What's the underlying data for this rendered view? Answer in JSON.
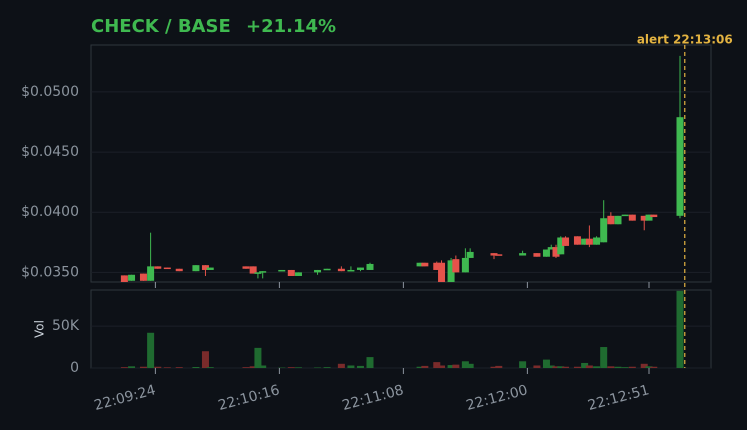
{
  "chart_data": {
    "type": "candlestick",
    "title": "CHECK / BASE",
    "change": "+21.14%",
    "up_color": "#3fb950",
    "down_color": "#e5534b",
    "volume_up_color": "#1f6b30",
    "volume_down_color": "#7a2b2b",
    "x": [
      79751,
      79754,
      79759,
      79762,
      79765,
      79769,
      79774,
      79781,
      79785,
      79787,
      79802,
      79805,
      79807,
      79809,
      79817,
      79821,
      79824,
      79832,
      79836,
      79842,
      79846,
      79850,
      79854,
      79875,
      79877,
      79882,
      79884,
      79888,
      79890,
      79894,
      79896,
      79906,
      79908,
      79918,
      79924,
      79928,
      79930,
      79932,
      79934,
      79936,
      79941,
      79944,
      79946,
      79949,
      79952,
      79955,
      79958,
      79961,
      79964,
      79969,
      79971,
      79973,
      79984
    ],
    "open": [
      0.03475,
      0.0343,
      0.0349,
      0.0343,
      0.0355,
      0.0354,
      0.0353,
      0.0351,
      0.0356,
      0.0352,
      0.0355,
      0.0355,
      0.0349,
      0.035,
      0.0351,
      0.0352,
      0.0347,
      0.035,
      0.0352,
      0.0353,
      0.0351,
      0.0352,
      0.0352,
      0.0355,
      0.0358,
      0.0358,
      0.0358,
      0.0342,
      0.0361,
      0.035,
      0.0362,
      0.0366,
      0.0365,
      0.0364,
      0.0366,
      0.0363,
      0.0369,
      0.0371,
      0.0365,
      0.0379,
      0.038,
      0.0373,
      0.0378,
      0.0373,
      0.0375,
      0.0397,
      0.039,
      0.0397,
      0.0398,
      0.0397,
      0.0393,
      0.0398,
      0.0397
    ],
    "high": [
      0.03475,
      0.0348,
      0.0349,
      0.0383,
      0.0355,
      0.0354,
      0.0353,
      0.0356,
      0.0356,
      0.0354,
      0.0355,
      0.0355,
      0.035,
      0.0351,
      0.0352,
      0.0352,
      0.035,
      0.0352,
      0.0353,
      0.0355,
      0.0355,
      0.0354,
      0.0358,
      0.0358,
      0.0358,
      0.0359,
      0.036,
      0.0362,
      0.0364,
      0.037,
      0.037,
      0.0366,
      0.0365,
      0.0368,
      0.0366,
      0.0369,
      0.0373,
      0.0373,
      0.038,
      0.038,
      0.038,
      0.0378,
      0.0389,
      0.038,
      0.041,
      0.04,
      0.0397,
      0.0398,
      0.0398,
      0.0397,
      0.0398,
      0.0398,
      0.053
    ],
    "low": [
      0.0342,
      0.0343,
      0.0343,
      0.0343,
      0.0353,
      0.0353,
      0.0351,
      0.0351,
      0.0347,
      0.0352,
      0.0353,
      0.0349,
      0.0345,
      0.0345,
      0.0351,
      0.0347,
      0.0347,
      0.0348,
      0.0352,
      0.0351,
      0.0351,
      0.0351,
      0.0352,
      0.0355,
      0.0355,
      0.0352,
      0.0342,
      0.0342,
      0.035,
      0.035,
      0.0362,
      0.0361,
      0.0364,
      0.0364,
      0.0363,
      0.0363,
      0.0369,
      0.0362,
      0.0365,
      0.0372,
      0.0373,
      0.0373,
      0.0371,
      0.0373,
      0.0375,
      0.039,
      0.039,
      0.0397,
      0.0393,
      0.0385,
      0.0393,
      0.0396,
      0.0395
    ],
    "close": [
      0.0342,
      0.0348,
      0.0343,
      0.0355,
      0.0353,
      0.0353,
      0.0351,
      0.0356,
      0.0352,
      0.0354,
      0.0353,
      0.0349,
      0.035,
      0.0351,
      0.0352,
      0.0347,
      0.035,
      0.0352,
      0.0353,
      0.0351,
      0.0352,
      0.0354,
      0.0357,
      0.0358,
      0.0355,
      0.0352,
      0.0342,
      0.036,
      0.035,
      0.0362,
      0.0367,
      0.0364,
      0.0364,
      0.0366,
      0.0363,
      0.0369,
      0.0371,
      0.0363,
      0.0379,
      0.0372,
      0.0373,
      0.0378,
      0.0373,
      0.0379,
      0.0395,
      0.039,
      0.0397,
      0.0398,
      0.0393,
      0.0393,
      0.0398,
      0.0396,
      0.0479
    ],
    "volume": [
      1000,
      2000,
      1500,
      42000,
      1500,
      800,
      1000,
      1200,
      20000,
      1000,
      1000,
      2000,
      24000,
      3000,
      500,
      1000,
      800,
      600,
      1000,
      5000,
      3000,
      2500,
      13000,
      1500,
      2500,
      7000,
      3000,
      3500,
      4000,
      8000,
      5000,
      1500,
      2500,
      8000,
      3000,
      10000,
      3000,
      2000,
      2000,
      1500,
      1500,
      6000,
      3000,
      2000,
      25000,
      2000,
      1500,
      1000,
      1500,
      5000,
      2000,
      1500,
      92000
    ],
    "xlim": [
      79737,
      79997
    ],
    "xticks": [
      {
        "value": 79764,
        "label": "22:09:24"
      },
      {
        "value": 79816,
        "label": "22:10:16"
      },
      {
        "value": 79868,
        "label": "22:11:08"
      },
      {
        "value": 79920,
        "label": "22:12:00"
      },
      {
        "value": 79971,
        "label": "22:12:51"
      }
    ],
    "ylim": [
      0.0342,
      0.0539
    ],
    "yticks": [
      {
        "value": 0.035,
        "label": "$0.0350"
      },
      {
        "value": 0.04,
        "label": "$0.0400"
      },
      {
        "value": 0.045,
        "label": "$0.0450"
      },
      {
        "value": 0.05,
        "label": "$0.0500"
      }
    ],
    "volume_axis_label": "Vol",
    "volume_ylim": [
      0,
      93000
    ],
    "volume_yticks": [
      0,
      {
        "value": 50000,
        "label": "50K"
      }
    ],
    "grid": true,
    "alert": {
      "x": 79986,
      "label": "alert 22:13:06",
      "color": "#e3b341"
    }
  }
}
